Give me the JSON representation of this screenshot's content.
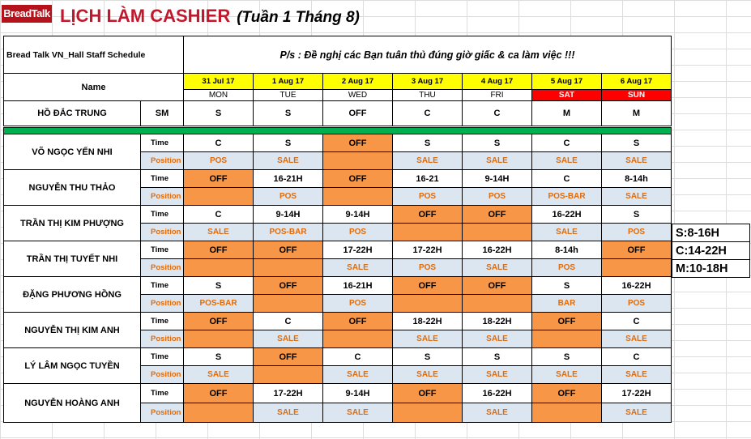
{
  "app": {
    "logo_text": "BreadTalk",
    "title": "LỊCH LÀM CASHIER",
    "subtitle": "(Tuần 1 Tháng 8)",
    "org_label": "Bread Talk VN_Hall Staff  Schedule",
    "notice": "P/s : Đề nghị các Bạn tuân thủ đúng giờ giấc & ca làm việc !!!",
    "name_header": "Name",
    "time_label": "Time",
    "position_label": "Position"
  },
  "days": [
    {
      "date": "31 Jul 17",
      "dow": "MON",
      "weekend": false
    },
    {
      "date": "1 Aug 17",
      "dow": "TUE",
      "weekend": false
    },
    {
      "date": "2 Aug 17",
      "dow": "WED",
      "weekend": false
    },
    {
      "date": "3 Aug 17",
      "dow": "THU",
      "weekend": false
    },
    {
      "date": "4 Aug 17",
      "dow": "FRI",
      "weekend": false
    },
    {
      "date": "5 Aug 17",
      "dow": "SAT",
      "weekend": true
    },
    {
      "date": "6 Aug 17",
      "dow": "SUN",
      "weekend": true
    }
  ],
  "manager": {
    "name": "HỒ ĐẮC TRUNG",
    "role": "SM",
    "shifts": [
      "S",
      "S",
      "OFF",
      "C",
      "C",
      "M",
      "M"
    ]
  },
  "staff": [
    {
      "name": "VÕ NGỌC YẾN NHI",
      "time": [
        "C",
        "S",
        "OFF",
        "S",
        "S",
        "C",
        "S"
      ],
      "position": [
        "POS",
        "SALE",
        "",
        "SALE",
        "SALE",
        "SALE",
        "SALE"
      ]
    },
    {
      "name": "NGUYỄN THU THẢO",
      "time": [
        "OFF",
        "16-21H",
        "OFF",
        "16-21",
        "9-14H",
        "C",
        "8-14h"
      ],
      "position": [
        "",
        "POS",
        "",
        "POS",
        "POS",
        "POS-BAR",
        "SALE"
      ]
    },
    {
      "name": "TRẦN THỊ KIM PHƯỢNG",
      "time": [
        "C",
        "9-14H",
        "9-14H",
        "OFF",
        "OFF",
        "16-22H",
        "S"
      ],
      "position": [
        "SALE",
        "POS-BAR",
        "POS",
        "",
        "",
        "SALE",
        "POS"
      ]
    },
    {
      "name": "TRẦN THỊ TUYẾT NHI",
      "time": [
        "OFF",
        "OFF",
        "17-22H",
        "17-22H",
        "16-22H",
        "8-14h",
        "OFF"
      ],
      "position": [
        "",
        "",
        "SALE",
        "POS",
        "SALE",
        "POS",
        ""
      ]
    },
    {
      "name": "ĐẶNG PHƯƠNG HỒNG",
      "time": [
        "S",
        "OFF",
        "16-21H",
        "OFF",
        "OFF",
        "S",
        "16-22H"
      ],
      "position": [
        "POS-BAR",
        "",
        "POS",
        "",
        "",
        "BAR",
        "POS"
      ]
    },
    {
      "name": "NGUYỄN THỊ KIM ANH",
      "time": [
        "OFF",
        "C",
        "OFF",
        "18-22H",
        "18-22H",
        "OFF",
        "C"
      ],
      "position": [
        "",
        "SALE",
        "",
        "SALE",
        "SALE",
        "",
        "SALE"
      ]
    },
    {
      "name": "LÝ LÂM NGỌC TUYỀN",
      "time": [
        "S",
        "OFF",
        "C",
        "S",
        "S",
        "S",
        "C"
      ],
      "position": [
        "SALE",
        "",
        "SALE",
        "SALE",
        "SALE",
        "SALE",
        "SALE"
      ]
    },
    {
      "name": "NGUYỄN HOÀNG ANH",
      "time": [
        "OFF",
        "17-22H",
        "9-14H",
        "OFF",
        "16-22H",
        "OFF",
        "17-22H"
      ],
      "position": [
        "",
        "SALE",
        "SALE",
        "",
        "SALE",
        "",
        "SALE"
      ]
    }
  ],
  "legend": [
    "S:8-16H",
    "C:14-22H",
    "M:10-18H"
  ],
  "colors": {
    "title": "#c0182d",
    "logo_bg": "#b5121b",
    "date_header": "#ffff00",
    "weekend_header": "#ff0000",
    "off_cell": "#f79646",
    "position_cell": "#dce6f1",
    "position_text": "#e26b0a",
    "divider_green": "#00b050"
  }
}
